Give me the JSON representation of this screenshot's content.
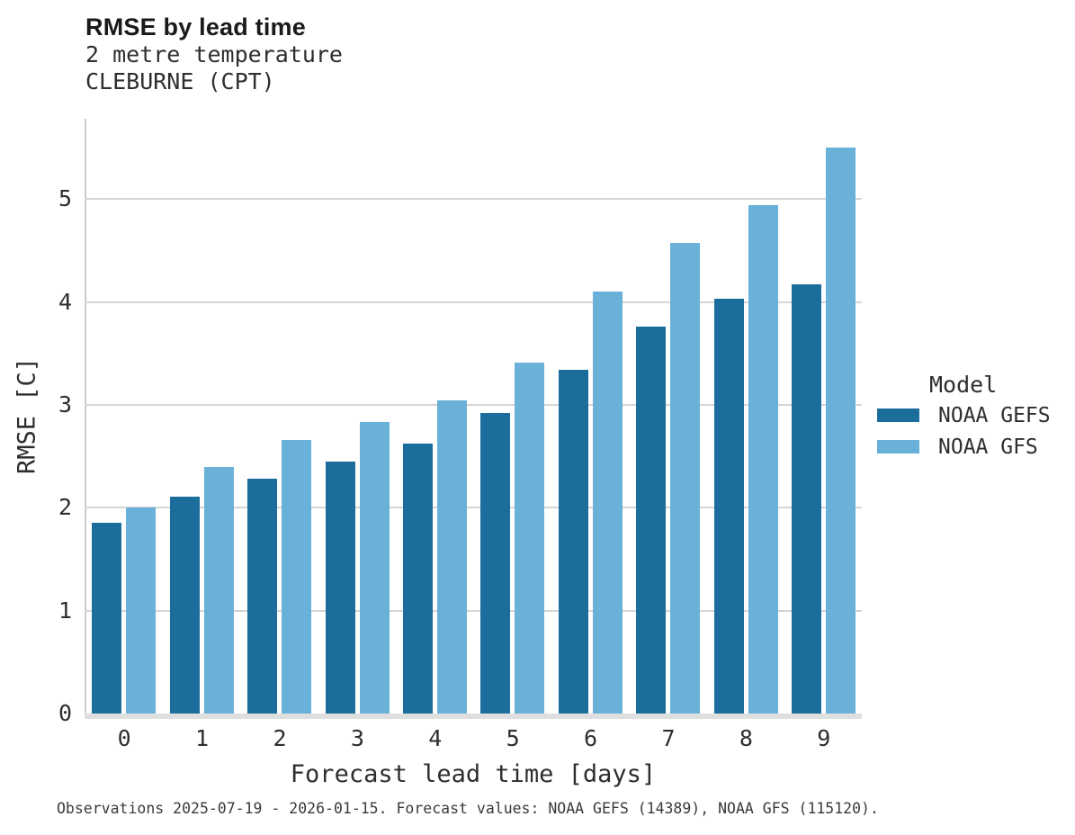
{
  "header": {
    "title": "RMSE by lead time",
    "subtitle": "2 metre temperature",
    "station": "CLEBURNE (CPT)"
  },
  "axes": {
    "xlabel": "Forecast lead time [days]",
    "ylabel": "RMSE [C]"
  },
  "legend": {
    "title": "Model",
    "entries": [
      {
        "label": "NOAA GEFS",
        "color": "#1b6d9c"
      },
      {
        "label": "NOAA GFS",
        "color": "#69b1d8"
      }
    ]
  },
  "footer": {
    "caption": "Observations 2025-07-19 - 2026-01-15. Forecast values: NOAA GEFS (14389), NOAA GFS (115120)."
  },
  "chart_data": {
    "type": "bar",
    "title": "RMSE by lead time",
    "subtitle": "2 metre temperature",
    "station": "CLEBURNE (CPT)",
    "xlabel": "Forecast lead time [days]",
    "ylabel": "RMSE [C]",
    "categories": [
      "0",
      "1",
      "2",
      "3",
      "4",
      "5",
      "6",
      "7",
      "8",
      "9"
    ],
    "series": [
      {
        "name": "NOAA GEFS",
        "color": "#1b6d9c",
        "values": [
          1.85,
          2.11,
          2.28,
          2.45,
          2.62,
          2.92,
          3.34,
          3.76,
          4.03,
          4.17
        ]
      },
      {
        "name": "NOAA GFS",
        "color": "#69b1d8",
        "values": [
          2.0,
          2.4,
          2.66,
          2.83,
          3.04,
          3.41,
          4.1,
          4.57,
          4.94,
          5.5
        ]
      }
    ],
    "ylim": [
      0,
      5.78
    ],
    "yticks": [
      0,
      1,
      2,
      3,
      4,
      5
    ],
    "grid": "horizontal",
    "legend_title": "Model",
    "legend_position": "right"
  }
}
